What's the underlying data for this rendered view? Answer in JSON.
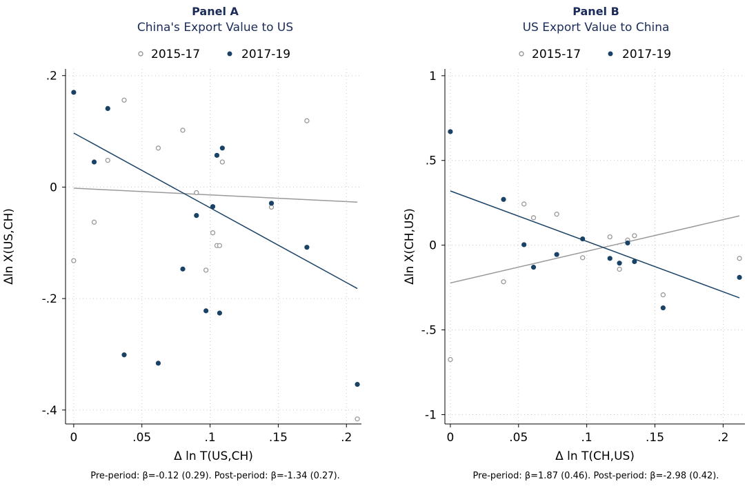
{
  "colors": {
    "pre": "#999999",
    "post": "#1a4266",
    "title": "#1a2b5a",
    "grid": "#c8c8c8"
  },
  "panels": [
    {
      "title": "Panel A",
      "subtitle": "China's Export Value to US",
      "legend": {
        "pre_label": "2015-17",
        "post_label": "2017-19"
      },
      "note": "Pre-period: β=-0.12 (0.29). Post-period: β=-1.34 (0.27)."
    },
    {
      "title": "Panel B",
      "subtitle": "US Export Value to China",
      "legend": {
        "pre_label": "2015-17",
        "post_label": "2017-19"
      },
      "note": "Pre-period: β=1.87 (0.46). Post-period: β=-2.98 (0.42)."
    }
  ],
  "chart_data": [
    {
      "type": "scatter",
      "title": "Panel A",
      "subtitle": "China's Export Value to US",
      "xlabel": "Δ ln T(US,CH)",
      "ylabel": "Δln X(US,CH)",
      "xlim": [
        -0.006,
        0.211
      ],
      "ylim": [
        -0.425,
        0.212
      ],
      "xticks": [
        0,
        0.05,
        0.1,
        0.15,
        0.2
      ],
      "xtick_labels": [
        "0",
        ".05",
        ".1",
        ".15",
        ".2"
      ],
      "yticks": [
        0.2,
        0,
        -0.2,
        -0.4
      ],
      "ytick_labels": [
        ".2",
        "0",
        "-.2",
        "-.4"
      ],
      "grid": true,
      "legend_position": "top",
      "series": [
        {
          "name": "2015-17",
          "style": "hollow",
          "points": [
            [
              0.0,
              -0.132
            ],
            [
              0.015,
              -0.063
            ],
            [
              0.025,
              0.048
            ],
            [
              0.037,
              0.156
            ],
            [
              0.062,
              0.07
            ],
            [
              0.08,
              0.102
            ],
            [
              0.09,
              -0.01
            ],
            [
              0.097,
              -0.149
            ],
            [
              0.102,
              -0.082
            ],
            [
              0.105,
              -0.105
            ],
            [
              0.107,
              -0.105
            ],
            [
              0.109,
              0.045
            ],
            [
              0.145,
              -0.036
            ],
            [
              0.171,
              0.119
            ],
            [
              0.208,
              -0.416
            ]
          ],
          "fit": {
            "x": [
              0.0,
              0.208
            ],
            "y": [
              -0.002,
              -0.027
            ]
          }
        },
        {
          "name": "2017-19",
          "style": "filled",
          "points": [
            [
              0.0,
              0.17
            ],
            [
              0.015,
              0.045
            ],
            [
              0.025,
              0.141
            ],
            [
              0.037,
              -0.301
            ],
            [
              0.062,
              -0.316
            ],
            [
              0.08,
              -0.147
            ],
            [
              0.09,
              -0.051
            ],
            [
              0.097,
              -0.222
            ],
            [
              0.102,
              -0.035
            ],
            [
              0.105,
              0.057
            ],
            [
              0.107,
              -0.226
            ],
            [
              0.109,
              0.07
            ],
            [
              0.145,
              -0.029
            ],
            [
              0.171,
              -0.108
            ],
            [
              0.208,
              -0.354
            ]
          ],
          "fit": {
            "x": [
              0.0,
              0.208
            ],
            "y": [
              0.097,
              -0.182
            ]
          }
        }
      ]
    },
    {
      "type": "scatter",
      "title": "Panel B",
      "subtitle": "US Export Value to China",
      "xlabel": "Δ ln T(CH,US)",
      "ylabel": "Δln X(CH,US)",
      "xlim": [
        -0.004,
        0.216
      ],
      "ylim": [
        -1.055,
        1.04
      ],
      "xticks": [
        0,
        0.05,
        0.1,
        0.15,
        0.2
      ],
      "xtick_labels": [
        "0",
        ".05",
        ".1",
        ".15",
        ".2"
      ],
      "yticks": [
        1,
        0.5,
        0,
        -0.5,
        -1
      ],
      "ytick_labels": [
        "1",
        ".5",
        "0",
        "-.5",
        "-1"
      ],
      "grid": true,
      "legend_position": "top",
      "series": [
        {
          "name": "2015-17",
          "style": "hollow",
          "points": [
            [
              0.0,
              -0.675
            ],
            [
              0.039,
              -0.216
            ],
            [
              0.054,
              0.243
            ],
            [
              0.061,
              0.162
            ],
            [
              0.078,
              0.183
            ],
            [
              0.097,
              -0.074
            ],
            [
              0.117,
              0.049
            ],
            [
              0.124,
              -0.142
            ],
            [
              0.13,
              0.03
            ],
            [
              0.135,
              0.056
            ],
            [
              0.156,
              -0.293
            ],
            [
              0.212,
              -0.078
            ]
          ],
          "fit": {
            "x": [
              0.0,
              0.212
            ],
            "y": [
              -0.223,
              0.173
            ]
          }
        },
        {
          "name": "2017-19",
          "style": "filled",
          "points": [
            [
              0.0,
              0.67
            ],
            [
              0.039,
              0.27
            ],
            [
              0.054,
              0.003
            ],
            [
              0.061,
              -0.13
            ],
            [
              0.078,
              -0.055
            ],
            [
              0.097,
              0.037
            ],
            [
              0.117,
              -0.078
            ],
            [
              0.124,
              -0.106
            ],
            [
              0.13,
              0.013
            ],
            [
              0.135,
              -0.097
            ],
            [
              0.156,
              -0.37
            ],
            [
              0.212,
              -0.19
            ]
          ],
          "fit": {
            "x": [
              0.0,
              0.212
            ],
            "y": [
              0.32,
              -0.311
            ]
          }
        }
      ]
    }
  ]
}
